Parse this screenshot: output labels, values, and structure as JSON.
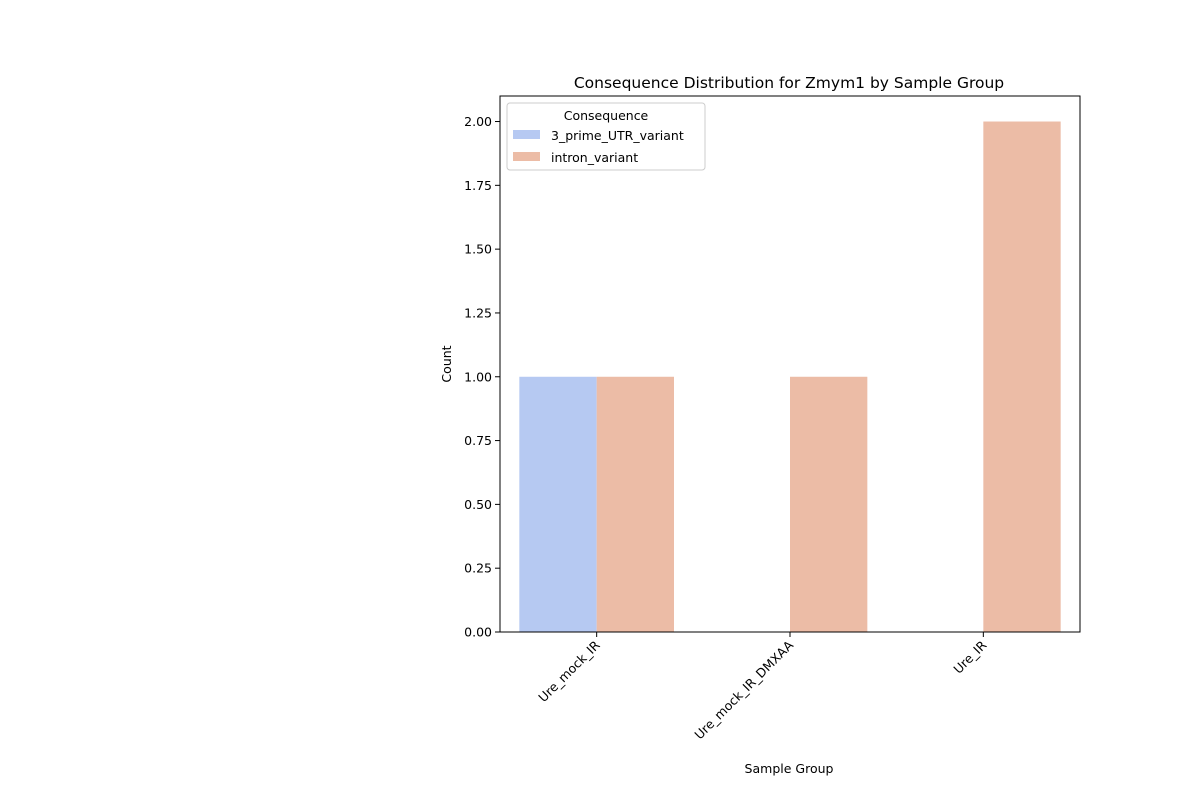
{
  "chart_data": {
    "type": "bar",
    "title": "Consequence Distribution for Zmym1 by Sample Group",
    "xlabel": "Sample Group",
    "ylabel": "Count",
    "categories": [
      "Ure_mock_IR",
      "Ure_mock_IR_DMXAA",
      "Ure_IR"
    ],
    "series": [
      {
        "name": "3_prime_UTR_variant",
        "color": "#b6c9f2",
        "values": [
          1,
          null,
          null
        ]
      },
      {
        "name": "intron_variant",
        "color": "#ecbca6",
        "values": [
          1,
          1,
          2
        ]
      }
    ],
    "ylim": [
      0,
      2.1
    ],
    "yticks": [
      0.0,
      0.25,
      0.5,
      0.75,
      1.0,
      1.25,
      1.5,
      1.75,
      2.0
    ],
    "ytick_labels": [
      "0.00",
      "0.25",
      "0.50",
      "0.75",
      "1.00",
      "1.25",
      "1.50",
      "1.75",
      "2.00"
    ],
    "legend": {
      "title": "Consequence",
      "placement": "top-left"
    },
    "grid": false
  }
}
